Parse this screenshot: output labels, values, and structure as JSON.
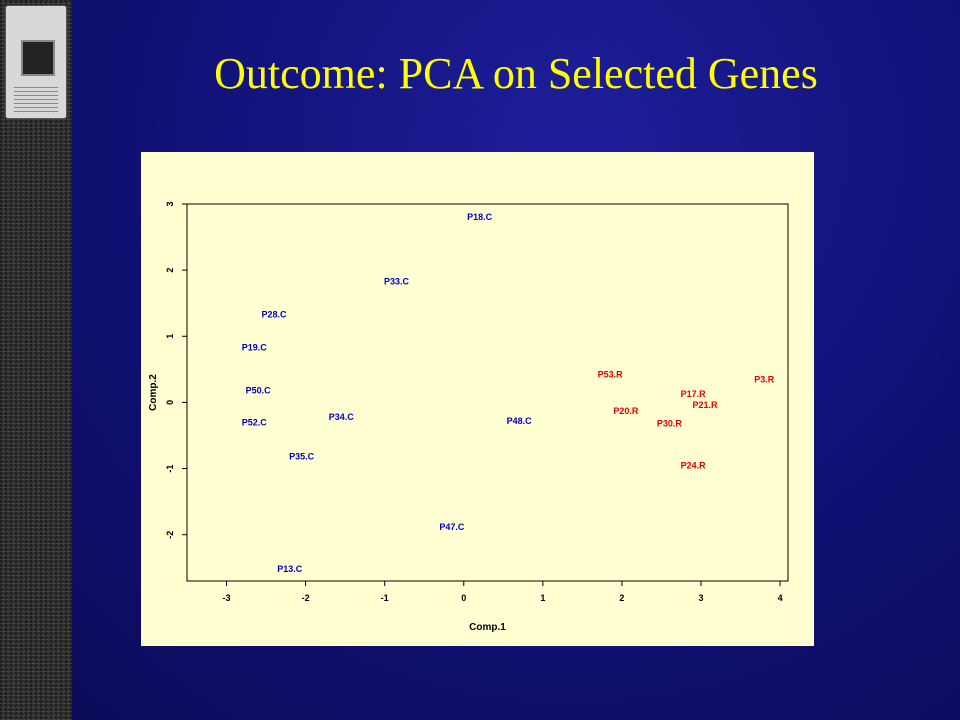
{
  "slide": {
    "title": "Outcome: PCA on Selected Genes"
  },
  "chart_data": {
    "type": "scatter",
    "xlabel": "Comp.1",
    "ylabel": "Comp.2",
    "xlim": [
      -3.5,
      4.1
    ],
    "ylim": [
      -2.7,
      3.0
    ],
    "xticks": [
      -3,
      -2,
      -1,
      0,
      1,
      2,
      3,
      4
    ],
    "yticks": [
      -2,
      -1,
      0,
      1,
      2,
      3
    ],
    "grid": false,
    "colors": {
      "C": "#0000c8",
      "R": "#e60000"
    },
    "points": [
      {
        "label": "P18.C",
        "x": 0.2,
        "y": 2.8,
        "group": "C"
      },
      {
        "label": "P33.C",
        "x": -0.85,
        "y": 1.83,
        "group": "C"
      },
      {
        "label": "P28.C",
        "x": -2.4,
        "y": 1.33,
        "group": "C"
      },
      {
        "label": "P19.C",
        "x": -2.65,
        "y": 0.83,
        "group": "C"
      },
      {
        "label": "P50.C",
        "x": -2.6,
        "y": 0.18,
        "group": "C"
      },
      {
        "label": "P52.C",
        "x": -2.65,
        "y": -0.3,
        "group": "C"
      },
      {
        "label": "P34.C",
        "x": -1.55,
        "y": -0.22,
        "group": "C"
      },
      {
        "label": "P35.C",
        "x": -2.05,
        "y": -0.82,
        "group": "C"
      },
      {
        "label": "P48.C",
        "x": 0.7,
        "y": -0.28,
        "group": "C"
      },
      {
        "label": "P47.C",
        "x": -0.15,
        "y": -1.88,
        "group": "C"
      },
      {
        "label": "P13.C",
        "x": -2.2,
        "y": -2.52,
        "group": "C"
      },
      {
        "label": "P53.R",
        "x": 1.85,
        "y": 0.42,
        "group": "R"
      },
      {
        "label": "P3.R",
        "x": 3.8,
        "y": 0.35,
        "group": "R"
      },
      {
        "label": "P17.R",
        "x": 2.9,
        "y": 0.13,
        "group": "R"
      },
      {
        "label": "P21.R",
        "x": 3.05,
        "y": -0.04,
        "group": "R"
      },
      {
        "label": "P20.R",
        "x": 2.05,
        "y": -0.13,
        "group": "R"
      },
      {
        "label": "P30.R",
        "x": 2.6,
        "y": -0.32,
        "group": "R"
      },
      {
        "label": "P24.R",
        "x": 2.9,
        "y": -0.95,
        "group": "R"
      }
    ]
  }
}
